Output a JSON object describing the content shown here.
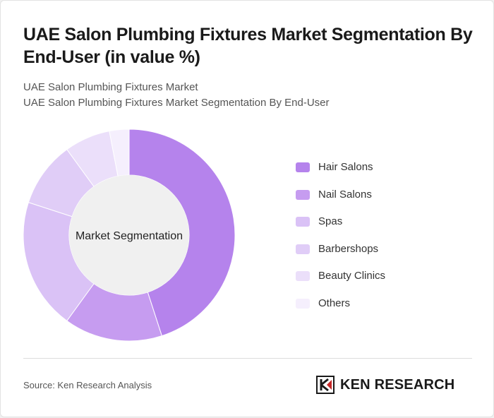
{
  "header": {
    "title": "UAE Salon Plumbing Fixtures Market Segmentation By End-User (in value %)",
    "subtitle_1": "UAE Salon Plumbing Fixtures Market",
    "subtitle_2": "UAE Salon Plumbing Fixtures Market Segmentation By End-User"
  },
  "chart_data": {
    "type": "pie",
    "center_label": "Market Segmentation",
    "categories": [
      "Hair Salons",
      "Nail Salons",
      "Spas",
      "Barbershops",
      "Beauty Clinics",
      "Others"
    ],
    "values": [
      45,
      15,
      20,
      10,
      7,
      3
    ],
    "colors": [
      "#b583ec",
      "#c69cf0",
      "#dac2f6",
      "#e0cdf7",
      "#ebdffa",
      "#f5effd"
    ],
    "legend_position": "right"
  },
  "footer": {
    "source": "Source: Ken Research Analysis",
    "brand": "KEN RESEARCH"
  }
}
